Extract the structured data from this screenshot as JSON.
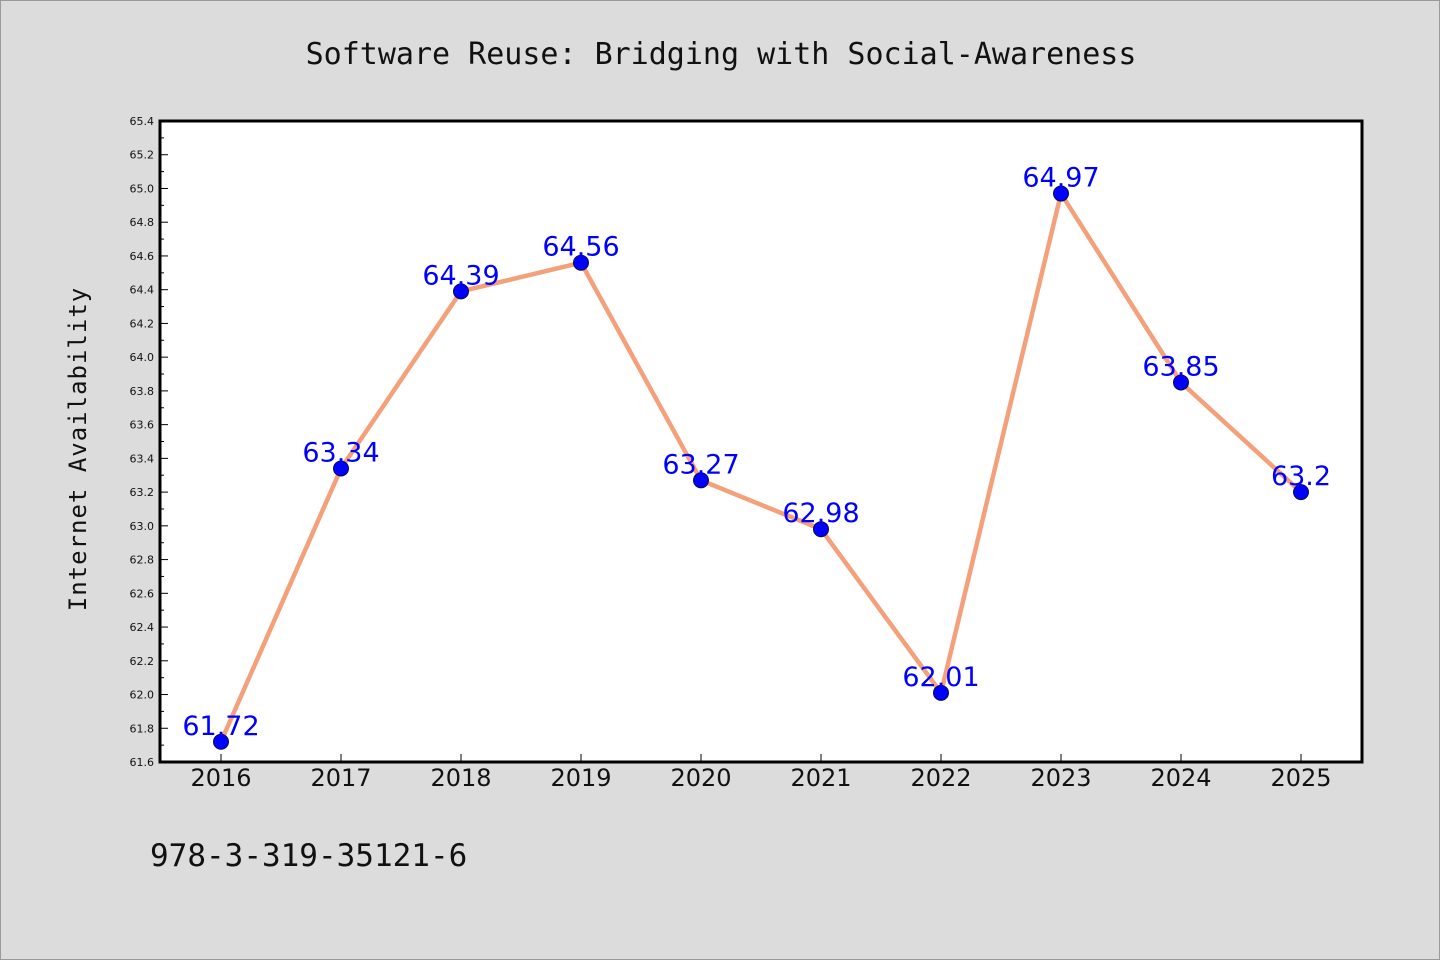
{
  "footnote": "978-3-319-35121-6",
  "chart_data": {
    "type": "line",
    "title": "Software Reuse: Bridging with Social-Awareness",
    "xlabel": "",
    "ylabel": "Internet Availability",
    "categories": [
      "2016",
      "2017",
      "2018",
      "2019",
      "2020",
      "2021",
      "2022",
      "2023",
      "2024",
      "2025"
    ],
    "series": [
      {
        "values": [
          61.72,
          63.34,
          64.39,
          64.56,
          63.27,
          62.98,
          62.01,
          64.97,
          63.85,
          63.2
        ],
        "labels": [
          "61.72",
          "63.34",
          "64.39",
          "64.56",
          "63.27",
          "62.98",
          "62.01",
          "64.97",
          "63.85",
          "63.2"
        ],
        "line_color": "#f4a07a",
        "marker_color": "#0000ff",
        "label_color": "#0000ff"
      }
    ],
    "ylim": [
      61.6,
      65.4
    ],
    "yticks": [
      "61.6",
      "61.8",
      "62.0",
      "62.2",
      "62.4",
      "62.6",
      "62.8",
      "63.0",
      "63.2",
      "63.4",
      "63.6",
      "63.8",
      "64.0",
      "64.2",
      "64.4",
      "64.6",
      "64.8",
      "65.0",
      "65.2",
      "65.4"
    ],
    "grid": false,
    "legend": "none",
    "colors": {
      "figure_background": "#dcdcdc",
      "plot_background": "#ffffff",
      "axes_border": "#000000"
    }
  }
}
